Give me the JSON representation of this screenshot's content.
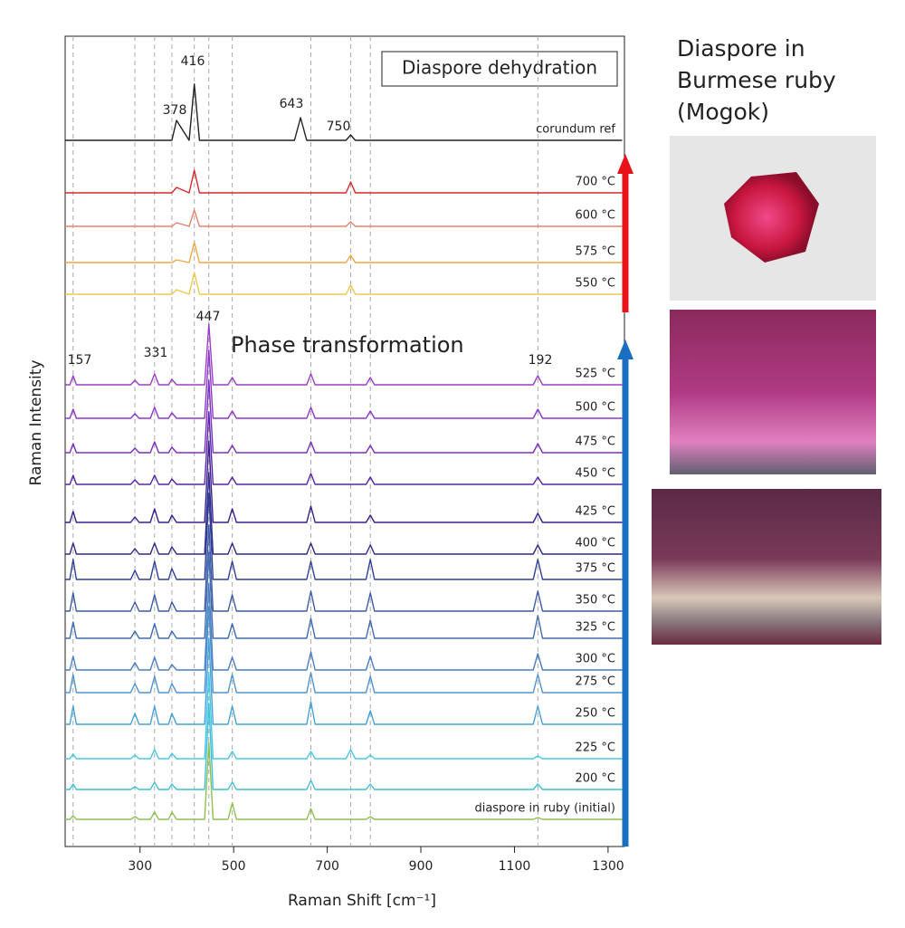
{
  "chart_data": {
    "type": "line",
    "title": "Diaspore dehydration",
    "xlabel": "Raman Shift [cm⁻¹]",
    "ylabel": "Raman Intensity",
    "xlim": [
      140,
      1335
    ],
    "xticks": [
      300,
      500,
      700,
      900,
      1100,
      1300
    ],
    "ylim": [
      0,
      895
    ],
    "ref_lines": [
      157,
      289,
      331,
      368,
      416,
      447,
      497,
      665,
      750,
      792,
      1150
    ],
    "annotations": [
      "378",
      "416",
      "643",
      "750",
      "157",
      "331",
      "447",
      "192",
      "Phase transformation"
    ],
    "side_title": [
      "Diaspore in",
      "Burmese ruby",
      "(Mogok)"
    ],
    "x": [
      140,
      150,
      157,
      164,
      280,
      289,
      298,
      322,
      331,
      340,
      361,
      368,
      378,
      405,
      416,
      427,
      438,
      447,
      456,
      488,
      497,
      506,
      630,
      643,
      656,
      665,
      674,
      740,
      750,
      760,
      783,
      792,
      801,
      1140,
      1150,
      1160,
      1330
    ],
    "series": [
      {
        "name": "corundum ref",
        "color": "#222222",
        "values": [
          780,
          780,
          780,
          780,
          780,
          780,
          780,
          780,
          780,
          780,
          780,
          780,
          802,
          780,
          842,
          780,
          780,
          780,
          780,
          780,
          780,
          780,
          780,
          805,
          780,
          780,
          780,
          780,
          786,
          780,
          780,
          780,
          780,
          780,
          780,
          780,
          780
        ]
      },
      {
        "name": "700 °C",
        "color": "#d42a2a",
        "values": [
          722,
          722,
          722,
          722,
          722,
          722,
          722,
          722,
          722,
          722,
          722,
          722,
          728,
          722,
          747,
          722,
          722,
          722,
          722,
          722,
          722,
          722,
          722,
          722,
          722,
          722,
          722,
          722,
          734,
          722,
          722,
          722,
          722,
          722,
          722,
          722,
          722
        ]
      },
      {
        "name": "600 °C",
        "color": "#e8826a",
        "values": [
          685,
          685,
          685,
          685,
          685,
          685,
          685,
          685,
          685,
          685,
          685,
          685,
          689,
          685,
          703,
          685,
          685,
          685,
          685,
          685,
          685,
          685,
          685,
          685,
          685,
          685,
          685,
          685,
          690,
          685,
          685,
          685,
          685,
          685,
          685,
          685,
          685
        ]
      },
      {
        "name": "575 °C",
        "color": "#f0a640",
        "values": [
          645,
          645,
          645,
          645,
          645,
          645,
          645,
          645,
          645,
          645,
          645,
          645,
          648,
          645,
          667,
          645,
          645,
          645,
          645,
          645,
          645,
          645,
          645,
          645,
          645,
          645,
          645,
          645,
          653,
          645,
          645,
          645,
          645,
          645,
          645,
          645,
          645
        ]
      },
      {
        "name": "550 °C",
        "color": "#efc94a",
        "values": [
          610,
          610,
          610,
          610,
          610,
          610,
          610,
          610,
          610,
          610,
          610,
          610,
          615,
          610,
          634,
          610,
          610,
          610,
          610,
          610,
          610,
          610,
          610,
          610,
          610,
          610,
          610,
          610,
          620,
          610,
          610,
          610,
          610,
          610,
          610,
          610,
          610
        ]
      },
      {
        "name": "525 °C",
        "color": "#9b3fc9",
        "values": [
          510,
          510,
          520,
          510,
          510,
          515,
          510,
          510,
          522,
          510,
          510,
          516,
          510,
          510,
          510,
          510,
          510,
          577,
          510,
          510,
          518,
          510,
          510,
          510,
          510,
          522,
          510,
          510,
          510,
          510,
          510,
          518,
          510,
          510,
          520,
          510,
          510
        ]
      },
      {
        "name": "500 °C",
        "color": "#8b36c8",
        "values": [
          473,
          473,
          483,
          473,
          473,
          478,
          473,
          473,
          485,
          473,
          473,
          479,
          473,
          473,
          473,
          473,
          473,
          548,
          473,
          473,
          481,
          473,
          473,
          473,
          473,
          485,
          473,
          473,
          473,
          473,
          473,
          481,
          473,
          473,
          483,
          473,
          473
        ]
      },
      {
        "name": "475 °C",
        "color": "#7a2fc0",
        "values": [
          435,
          435,
          445,
          435,
          435,
          440,
          435,
          435,
          447,
          435,
          435,
          441,
          435,
          435,
          435,
          435,
          435,
          515,
          435,
          435,
          443,
          435,
          435,
          435,
          435,
          447,
          435,
          435,
          435,
          435,
          435,
          443,
          435,
          435,
          445,
          435,
          435
        ]
      },
      {
        "name": "450 °C",
        "color": "#5a24a8",
        "values": [
          400,
          400,
          410,
          400,
          400,
          405,
          400,
          400,
          410,
          400,
          400,
          406,
          400,
          400,
          400,
          400,
          400,
          480,
          400,
          400,
          408,
          400,
          400,
          400,
          400,
          412,
          400,
          400,
          400,
          400,
          400,
          408,
          400,
          400,
          408,
          400,
          400
        ]
      },
      {
        "name": "425 °C",
        "color": "#3a1e8e",
        "values": [
          358,
          358,
          370,
          358,
          358,
          364,
          358,
          358,
          373,
          358,
          358,
          366,
          358,
          358,
          358,
          358,
          358,
          448,
          358,
          358,
          373,
          358,
          358,
          358,
          358,
          376,
          358,
          358,
          358,
          358,
          358,
          366,
          358,
          358,
          368,
          358,
          358
        ]
      },
      {
        "name": "400 °C",
        "color": "#2c2a8a",
        "values": [
          323,
          323,
          335,
          323,
          323,
          329,
          323,
          323,
          335,
          323,
          323,
          331,
          323,
          323,
          323,
          323,
          323,
          413,
          323,
          323,
          335,
          323,
          323,
          323,
          323,
          335,
          323,
          323,
          323,
          323,
          323,
          333,
          323,
          323,
          333,
          323,
          323
        ]
      },
      {
        "name": "375 °C",
        "color": "#2f3f96",
        "values": [
          295,
          295,
          317,
          295,
          295,
          305,
          295,
          295,
          315,
          295,
          295,
          307,
          295,
          295,
          295,
          295,
          295,
          390,
          295,
          295,
          315,
          295,
          295,
          295,
          295,
          315,
          295,
          295,
          295,
          295,
          295,
          317,
          295,
          295,
          317,
          295,
          295
        ]
      },
      {
        "name": "350 °C",
        "color": "#3d5aa6",
        "values": [
          260,
          260,
          280,
          260,
          260,
          270,
          260,
          260,
          278,
          260,
          260,
          270,
          260,
          260,
          260,
          260,
          260,
          355,
          260,
          260,
          278,
          260,
          260,
          260,
          260,
          282,
          260,
          260,
          260,
          260,
          260,
          280,
          260,
          260,
          282,
          260,
          260
        ]
      },
      {
        "name": "325 °C",
        "color": "#3f6cb0",
        "values": [
          230,
          230,
          248,
          230,
          230,
          238,
          230,
          230,
          246,
          230,
          230,
          238,
          230,
          230,
          230,
          230,
          230,
          325,
          230,
          230,
          246,
          230,
          230,
          230,
          230,
          252,
          230,
          230,
          230,
          230,
          230,
          250,
          230,
          230,
          255,
          230,
          230
        ]
      },
      {
        "name": "300 °C",
        "color": "#4a7ec0",
        "values": [
          195,
          195,
          210,
          195,
          195,
          203,
          195,
          195,
          209,
          195,
          195,
          201,
          195,
          195,
          195,
          195,
          195,
          290,
          195,
          195,
          209,
          195,
          195,
          195,
          195,
          215,
          195,
          195,
          195,
          195,
          195,
          210,
          195,
          195,
          213,
          195,
          195
        ]
      },
      {
        "name": "275 °C",
        "color": "#4f93d0",
        "values": [
          170,
          170,
          190,
          170,
          170,
          180,
          170,
          170,
          188,
          170,
          170,
          180,
          170,
          170,
          170,
          170,
          170,
          265,
          170,
          170,
          190,
          170,
          170,
          170,
          170,
          192,
          170,
          170,
          170,
          170,
          170,
          188,
          170,
          170,
          190,
          170,
          170
        ]
      },
      {
        "name": "250 °C",
        "color": "#45a2d8",
        "values": [
          135,
          135,
          155,
          135,
          135,
          147,
          135,
          135,
          155,
          135,
          135,
          147,
          135,
          135,
          135,
          135,
          135,
          230,
          135,
          135,
          155,
          135,
          135,
          135,
          135,
          160,
          135,
          135,
          135,
          135,
          135,
          150,
          135,
          135,
          155,
          135,
          135
        ]
      },
      {
        "name": "225 °C",
        "color": "#48c8e4",
        "values": [
          97,
          97,
          102,
          97,
          97,
          101,
          97,
          97,
          107,
          97,
          97,
          103,
          97,
          97,
          97,
          97,
          97,
          192,
          97,
          97,
          105,
          97,
          97,
          97,
          97,
          105,
          97,
          97,
          107,
          97,
          97,
          101,
          97,
          97,
          100,
          97,
          97
        ]
      },
      {
        "name": "200 °C",
        "color": "#3fbfd8",
        "values": [
          63,
          63,
          69,
          63,
          63,
          66,
          63,
          63,
          71,
          63,
          63,
          69,
          63,
          63,
          63,
          63,
          63,
          158,
          63,
          63,
          71,
          63,
          63,
          63,
          63,
          73,
          63,
          63,
          63,
          63,
          63,
          69,
          63,
          63,
          69,
          63,
          63
        ]
      },
      {
        "name": "diaspore in ruby (initial)",
        "color": "#8dc050",
        "values": [
          30,
          30,
          34,
          30,
          30,
          33,
          30,
          30,
          38,
          30,
          30,
          38,
          30,
          30,
          30,
          30,
          30,
          115,
          30,
          30,
          48,
          30,
          30,
          30,
          30,
          42,
          30,
          30,
          30,
          30,
          30,
          33,
          30,
          30,
          32,
          30,
          30
        ]
      }
    ]
  }
}
